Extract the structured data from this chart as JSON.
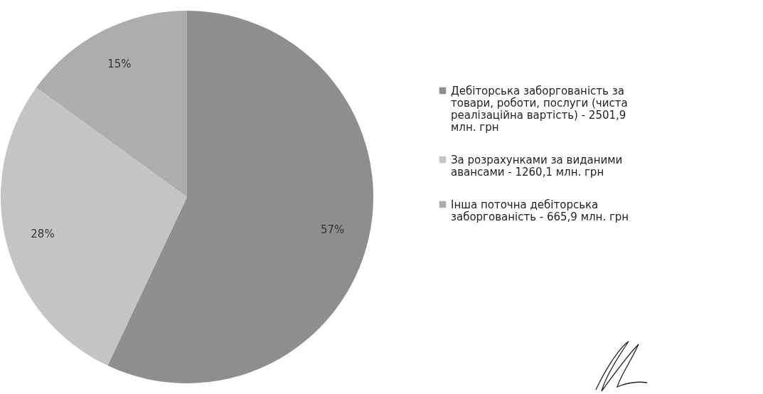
{
  "chart_data": {
    "type": "pie",
    "categories": [
      "Дебіторська заборгованість за товари, роботи, послуги (чиста реалізаційна вартість) - 2501,9 млн. грн",
      "За розрахунками за виданими авансами - 1260,1 млн. грн",
      "Інша поточна дебіторська заборгованість - 665,9 млн. грн"
    ],
    "values": [
      57,
      28,
      15
    ],
    "value_labels": [
      "57%",
      "28%",
      "15%"
    ],
    "colors": [
      "#8e8e8e",
      "#c4c4c4",
      "#adadad"
    ],
    "legend": "right"
  }
}
